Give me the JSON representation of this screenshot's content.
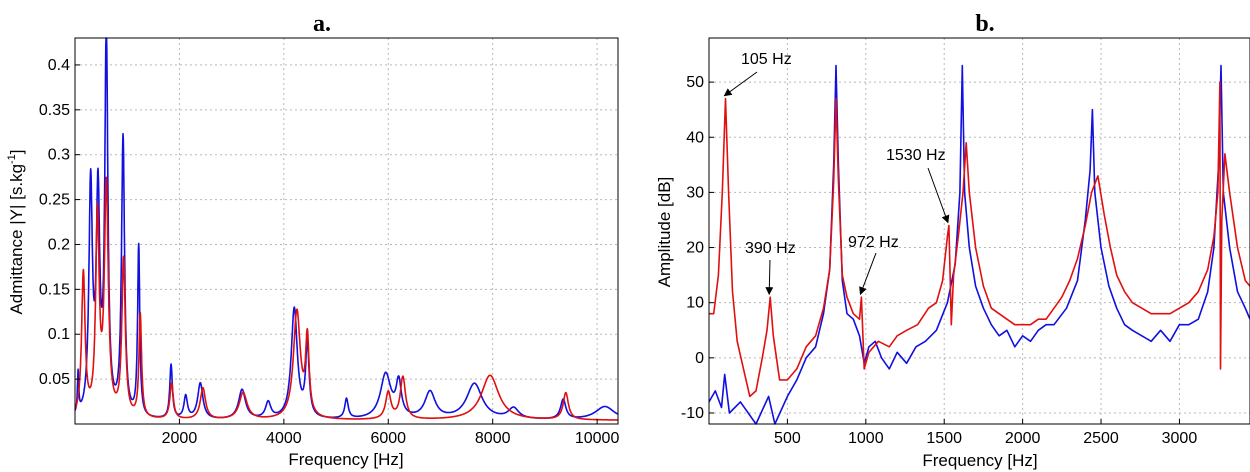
{
  "colors": {
    "series1": "#1010e0",
    "series2": "#e01010",
    "grid": "#b8b8b8"
  },
  "chart_data": [
    {
      "type": "line",
      "panel_label": "a.",
      "title": "",
      "xlabel": "Frequency [Hz]",
      "ylabel": "Admittance |Y|   [s.kg",
      "ylabel_sup": "-1",
      "ylabel_tail": "]",
      "xlim": [
        0,
        10400
      ],
      "ylim": [
        0,
        0.43
      ],
      "xticks": [
        2000,
        4000,
        6000,
        8000,
        10000
      ],
      "yticks": [
        0.05,
        0.1,
        0.15,
        0.2,
        0.25,
        0.3,
        0.35,
        0.4
      ],
      "xtick_labels": [
        "2000",
        "4000",
        "6000",
        "8000",
        "10000"
      ],
      "ytick_labels": [
        "0.05",
        "0.1",
        "0.15",
        "0.2",
        "0.25",
        "0.3",
        "0.35",
        "0.4"
      ],
      "grid": true,
      "series": [
        {
          "color": "#1010e0",
          "baseline": 0.004,
          "peaks": [
            [
              60,
              0.045,
              15
            ],
            [
              300,
              0.255,
              40
            ],
            [
              440,
              0.24,
              40
            ],
            [
              600,
              0.425,
              35
            ],
            [
              920,
              0.31,
              35
            ],
            [
              1220,
              0.19,
              25
            ],
            [
              1840,
              0.06,
              30
            ],
            [
              2120,
              0.025,
              40
            ],
            [
              2400,
              0.04,
              60
            ],
            [
              3200,
              0.033,
              80
            ],
            [
              3700,
              0.018,
              60
            ],
            [
              4200,
              0.123,
              70
            ],
            [
              4450,
              0.08,
              40
            ],
            [
              5200,
              0.022,
              40
            ],
            [
              5950,
              0.05,
              120
            ],
            [
              6200,
              0.038,
              60
            ],
            [
              6800,
              0.03,
              120
            ],
            [
              7650,
              0.04,
              180
            ],
            [
              8400,
              0.012,
              120
            ],
            [
              9350,
              0.022,
              60
            ],
            [
              10150,
              0.015,
              220
            ]
          ]
        },
        {
          "color": "#e01010",
          "baseline": 0.004,
          "peaks": [
            [
              160,
              0.16,
              40
            ],
            [
              430,
              0.22,
              40
            ],
            [
              600,
              0.255,
              45
            ],
            [
              930,
              0.175,
              40
            ],
            [
              1250,
              0.115,
              30
            ],
            [
              1850,
              0.04,
              40
            ],
            [
              2450,
              0.035,
              60
            ],
            [
              3220,
              0.03,
              90
            ],
            [
              4250,
              0.12,
              80
            ],
            [
              4450,
              0.085,
              40
            ],
            [
              6000,
              0.03,
              60
            ],
            [
              6280,
              0.047,
              60
            ],
            [
              7950,
              0.05,
              200
            ],
            [
              9400,
              0.03,
              60
            ]
          ]
        }
      ]
    },
    {
      "type": "line",
      "panel_label": "b.",
      "title": "",
      "xlabel": "Frequency [Hz]",
      "ylabel": "Amplitude   [dB]",
      "xlim": [
        0,
        3450
      ],
      "ylim": [
        -12,
        58
      ],
      "xticks": [
        500,
        1000,
        1500,
        2000,
        2500,
        3000
      ],
      "yticks": [
        -10,
        0,
        10,
        20,
        30,
        40,
        50
      ],
      "xtick_labels": [
        "500",
        "1000",
        "1500",
        "2000",
        "2500",
        "3000"
      ],
      "ytick_labels": [
        "-10",
        "0",
        "10",
        "20",
        "30",
        "40",
        "50"
      ],
      "grid": true,
      "annotations": [
        "105 Hz",
        "390 Hz",
        "972 Hz",
        "1530 Hz"
      ],
      "annotation_targets": [
        [
          105,
          47
        ],
        [
          390,
          11
        ],
        [
          972,
          11
        ],
        [
          1530,
          24
        ]
      ],
      "series": [
        {
          "color": "#1010e0",
          "points": [
            [
              0,
              -8
            ],
            [
              40,
              -6
            ],
            [
              80,
              -9
            ],
            [
              100,
              -3
            ],
            [
              130,
              -10
            ],
            [
              200,
              -8
            ],
            [
              300,
              -12
            ],
            [
              380,
              -7
            ],
            [
              420,
              -12
            ],
            [
              500,
              -7
            ],
            [
              560,
              -4
            ],
            [
              620,
              0
            ],
            [
              680,
              2
            ],
            [
              730,
              8
            ],
            [
              770,
              16
            ],
            [
              795,
              35
            ],
            [
              810,
              53
            ],
            [
              825,
              35
            ],
            [
              850,
              14
            ],
            [
              880,
              8
            ],
            [
              920,
              7
            ],
            [
              960,
              4
            ],
            [
              990,
              -1
            ],
            [
              1020,
              2
            ],
            [
              1060,
              3
            ],
            [
              1100,
              0
            ],
            [
              1150,
              -2
            ],
            [
              1200,
              1
            ],
            [
              1260,
              -1
            ],
            [
              1320,
              2
            ],
            [
              1380,
              3
            ],
            [
              1450,
              5
            ],
            [
              1520,
              10
            ],
            [
              1570,
              17
            ],
            [
              1600,
              30
            ],
            [
              1615,
              53
            ],
            [
              1630,
              30
            ],
            [
              1660,
              20
            ],
            [
              1700,
              13
            ],
            [
              1750,
              9
            ],
            [
              1800,
              6
            ],
            [
              1850,
              4
            ],
            [
              1900,
              5
            ],
            [
              1950,
              2
            ],
            [
              2000,
              4
            ],
            [
              2050,
              3
            ],
            [
              2100,
              5
            ],
            [
              2150,
              6
            ],
            [
              2200,
              6
            ],
            [
              2280,
              9
            ],
            [
              2350,
              14
            ],
            [
              2400,
              25
            ],
            [
              2430,
              34
            ],
            [
              2445,
              45
            ],
            [
              2460,
              30
            ],
            [
              2500,
              20
            ],
            [
              2550,
              13
            ],
            [
              2600,
              9
            ],
            [
              2650,
              6
            ],
            [
              2700,
              5
            ],
            [
              2760,
              4
            ],
            [
              2820,
              3
            ],
            [
              2880,
              5
            ],
            [
              2940,
              3
            ],
            [
              3000,
              6
            ],
            [
              3060,
              6
            ],
            [
              3120,
              7
            ],
            [
              3180,
              12
            ],
            [
              3220,
              20
            ],
            [
              3250,
              35
            ],
            [
              3265,
              53
            ],
            [
              3280,
              30
            ],
            [
              3320,
              20
            ],
            [
              3370,
              12
            ],
            [
              3420,
              9
            ],
            [
              3450,
              7
            ]
          ]
        },
        {
          "color": "#e01010",
          "points": [
            [
              0,
              8
            ],
            [
              30,
              8
            ],
            [
              60,
              15
            ],
            [
              85,
              30
            ],
            [
              105,
              47
            ],
            [
              125,
              30
            ],
            [
              150,
              12
            ],
            [
              180,
              3
            ],
            [
              220,
              -2
            ],
            [
              260,
              -7
            ],
            [
              300,
              -6
            ],
            [
              340,
              0
            ],
            [
              370,
              5
            ],
            [
              390,
              11
            ],
            [
              410,
              4
            ],
            [
              450,
              -4
            ],
            [
              500,
              -4
            ],
            [
              560,
              -2
            ],
            [
              620,
              2
            ],
            [
              680,
              4
            ],
            [
              730,
              9
            ],
            [
              770,
              16
            ],
            [
              795,
              32
            ],
            [
              810,
              47
            ],
            [
              825,
              32
            ],
            [
              850,
              15
            ],
            [
              880,
              11
            ],
            [
              920,
              8
            ],
            [
              960,
              7
            ],
            [
              972,
              11
            ],
            [
              990,
              -2
            ],
            [
              1020,
              1
            ],
            [
              1080,
              3
            ],
            [
              1150,
              2
            ],
            [
              1200,
              4
            ],
            [
              1260,
              5
            ],
            [
              1330,
              6
            ],
            [
              1400,
              9
            ],
            [
              1450,
              10
            ],
            [
              1490,
              14
            ],
            [
              1520,
              22
            ],
            [
              1530,
              24
            ],
            [
              1545,
              6
            ],
            [
              1560,
              15
            ],
            [
              1590,
              22
            ],
            [
              1620,
              30
            ],
            [
              1640,
              39
            ],
            [
              1660,
              30
            ],
            [
              1700,
              20
            ],
            [
              1750,
              13
            ],
            [
              1800,
              9
            ],
            [
              1850,
              8
            ],
            [
              1900,
              7
            ],
            [
              1950,
              6
            ],
            [
              2000,
              6
            ],
            [
              2050,
              6
            ],
            [
              2100,
              7
            ],
            [
              2150,
              7
            ],
            [
              2200,
              9
            ],
            [
              2250,
              11
            ],
            [
              2300,
              14
            ],
            [
              2350,
              18
            ],
            [
              2400,
              24
            ],
            [
              2440,
              30
            ],
            [
              2480,
              33
            ],
            [
              2520,
              26
            ],
            [
              2560,
              20
            ],
            [
              2600,
              15
            ],
            [
              2650,
              12
            ],
            [
              2700,
              10
            ],
            [
              2760,
              9
            ],
            [
              2820,
              8
            ],
            [
              2880,
              8
            ],
            [
              2940,
              8
            ],
            [
              3000,
              9
            ],
            [
              3060,
              10
            ],
            [
              3120,
              12
            ],
            [
              3180,
              16
            ],
            [
              3220,
              22
            ],
            [
              3245,
              30
            ],
            [
              3258,
              50
            ],
            [
              3262,
              -2
            ],
            [
              3270,
              25
            ],
            [
              3290,
              37
            ],
            [
              3320,
              30
            ],
            [
              3370,
              20
            ],
            [
              3420,
              14
            ],
            [
              3450,
              13
            ]
          ]
        }
      ]
    }
  ]
}
